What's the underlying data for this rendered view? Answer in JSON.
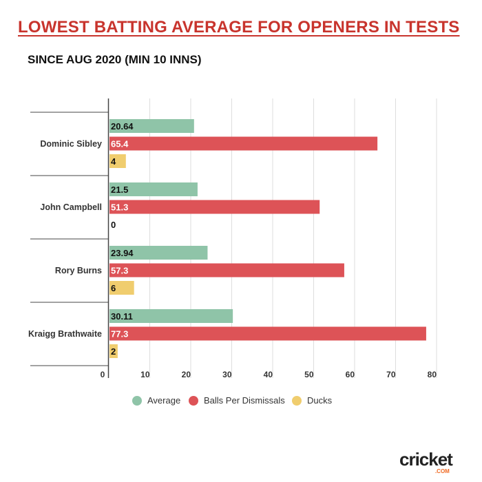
{
  "title": "LOWEST BATTING AVERAGE FOR OPENERS IN TESTS",
  "subtitle": "SINCE AUG 2020 (MIN 10 INNS)",
  "logo": {
    "text": "cricket",
    "suffix": ".COM"
  },
  "chart_data": {
    "type": "bar",
    "orientation": "horizontal",
    "categories": [
      "Dominic Sibley",
      "John Campbell",
      "Rory Burns",
      "Kraigg Brathwaite"
    ],
    "series": [
      {
        "name": "Average",
        "color": "#8fc4a8",
        "values": [
          20.64,
          21.5,
          23.94,
          30.11
        ],
        "labels": [
          "20.64",
          "21.5",
          "23.94",
          "30.11"
        ],
        "label_color": "#111"
      },
      {
        "name": "Balls Per Dismissals",
        "color": "#dd5357",
        "values": [
          65.4,
          51.3,
          57.3,
          77.3
        ],
        "labels": [
          "65.4",
          "51.3",
          "57.3",
          "77.3"
        ],
        "label_color": "#fff"
      },
      {
        "name": "Ducks",
        "color": "#f0cd6e",
        "values": [
          4,
          0,
          6,
          2
        ],
        "labels": [
          "4",
          "0",
          "6",
          "2"
        ],
        "label_color": "#111"
      }
    ],
    "xlim": [
      0,
      80
    ],
    "xticks": [
      "0",
      "10",
      "20",
      "30",
      "40",
      "50",
      "60",
      "70",
      "80"
    ],
    "grid": true,
    "legend": "bottom"
  }
}
